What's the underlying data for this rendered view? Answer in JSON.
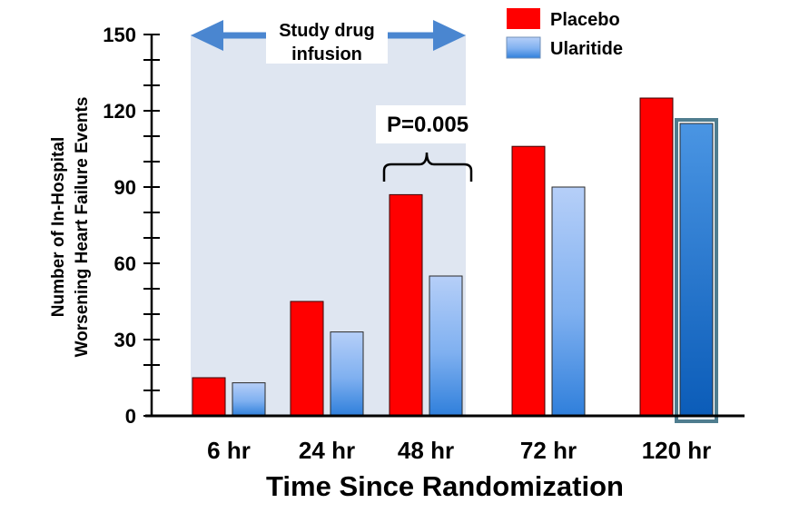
{
  "chart_data": {
    "type": "bar",
    "title": "",
    "xlabel": "Time Since Randomization",
    "ylabel_lines": [
      "Number of In-Hospital",
      "Worsening Heart Failure Events"
    ],
    "ylim": [
      0,
      150
    ],
    "yticks": [
      0,
      30,
      60,
      90,
      120,
      150
    ],
    "yticks_minor_step": 10,
    "categories": [
      "6 hr",
      "24 hr",
      "48 hr",
      "72 hr",
      "120 hr"
    ],
    "series": [
      {
        "name": "Placebo",
        "color": "#ff0000",
        "values": [
          15,
          45,
          87,
          106,
          125
        ]
      },
      {
        "name": "Ularitide",
        "color": "#5a9be6",
        "values": [
          13,
          33,
          55,
          90,
          115
        ]
      }
    ],
    "legend_position": "top-right",
    "infusion_window": {
      "label_lines": [
        "Study drug",
        "infusion"
      ],
      "from_category": "6 hr",
      "to_category": "48 hr"
    },
    "pvalue_annotation": {
      "text": "P=0.005",
      "category": "48 hr"
    },
    "highlighted_bar": {
      "category": "120 hr",
      "series": "Ularitide"
    },
    "grid": false
  }
}
